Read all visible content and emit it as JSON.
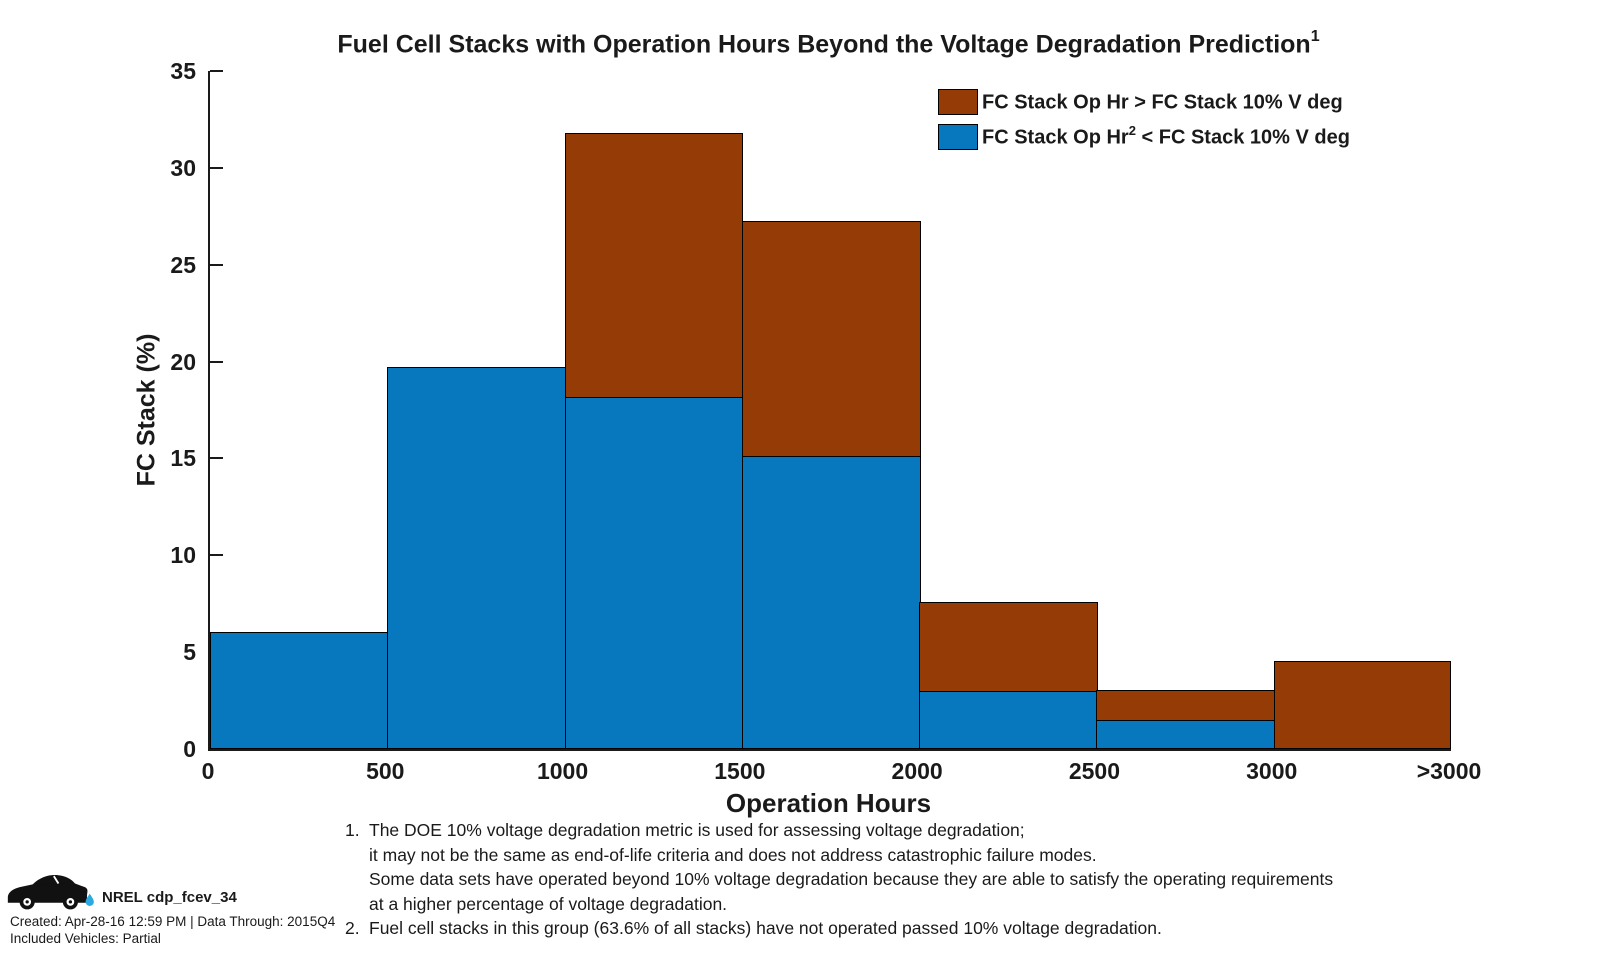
{
  "title": {
    "text": "Fuel Cell Stacks with Operation Hours Beyond the Voltage Degradation Prediction",
    "superscript": "1"
  },
  "chart_data": {
    "type": "bar",
    "stacked": true,
    "title": "Fuel Cell Stacks with Operation Hours Beyond the Voltage Degradation Prediction",
    "xlabel": "Operation Hours",
    "ylabel": "FC Stack (%)",
    "bin_edges_labels": [
      "0",
      "500",
      "1000",
      "1500",
      "2000",
      "2500",
      "3000",
      ">3000"
    ],
    "categories": [
      "0-500",
      "500-1000",
      "1000-1500",
      "1500-2000",
      "2000-2500",
      "2500-3000",
      ">3000"
    ],
    "series": [
      {
        "name": "FC Stack Op Hr² < FC Stack 10% V deg",
        "color": "#0778BE",
        "values": [
          6.06,
          19.7,
          18.18,
          15.15,
          3.03,
          1.52,
          0
        ]
      },
      {
        "name": "FC Stack Op Hr > FC Stack 10% V deg",
        "color": "#943B06",
        "values": [
          0,
          0,
          13.64,
          12.12,
          4.55,
          1.52,
          4.55
        ]
      }
    ],
    "stack_totals": [
      6.06,
      19.7,
      31.82,
      27.27,
      7.58,
      3.03,
      4.55
    ],
    "ylim": [
      0,
      35
    ],
    "yticks": [
      0,
      5,
      10,
      15,
      20,
      25,
      30,
      35
    ],
    "grid": false,
    "legend_position": "top-right"
  },
  "legend": {
    "items": [
      {
        "swatch_color": "#943B06",
        "pre": "FC Stack Op Hr ",
        "sup": "",
        "post": "> FC Stack 10% V deg"
      },
      {
        "swatch_color": "#0778BE",
        "pre": "FC Stack Op Hr",
        "sup": "2",
        "post": " < FC Stack 10% V deg"
      }
    ]
  },
  "footnotes": {
    "lines": [
      {
        "marker": "1.",
        "text": "The DOE 10% voltage degradation metric is used for assessing voltage degradation;"
      },
      {
        "marker": "",
        "text": "it may not be the same as end-of-life criteria and does not address catastrophic failure modes."
      },
      {
        "marker": "",
        "text": "Some data sets have operated beyond 10% voltage degradation because they are able to satisfy the operating requirements"
      },
      {
        "marker": "",
        "text": "at a higher percentage of voltage degradation."
      },
      {
        "marker": "2.",
        "text": "Fuel cell stacks in this group (63.6% of all stacks) have not operated passed 10% voltage degradation."
      }
    ]
  },
  "branding": {
    "product": "NREL cdp_fcev_34",
    "created": "Created: Apr-28-16 12:59 PM | Data Through: 2015Q4",
    "vehicles": "Included Vehicles: Partial",
    "car_icon": "fcev-car-icon",
    "drop_color": "#29ABE2"
  },
  "colors": {
    "bar_blue": "#0778BE",
    "bar_brown": "#943B06",
    "axis": "#1a1a1a",
    "background": "#FFFFFF"
  }
}
